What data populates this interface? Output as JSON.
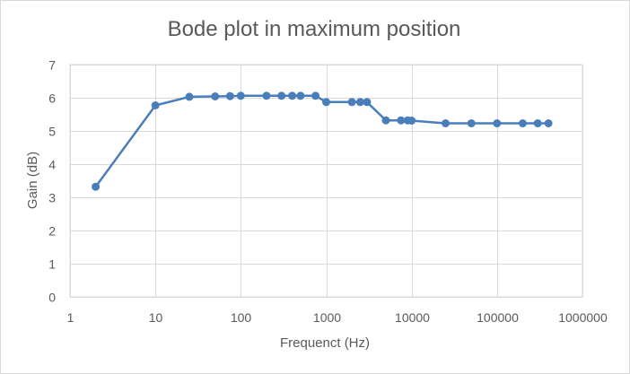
{
  "chart_data": {
    "type": "line",
    "title": "Bode plot in maximum position",
    "xlabel": "Frequenct (Hz)",
    "ylabel": "Gain (dB)",
    "x_scale": "log",
    "xlim": [
      1,
      1000000
    ],
    "ylim": [
      0,
      7
    ],
    "x_ticks": [
      1,
      10,
      100,
      1000,
      10000,
      100000,
      1000000
    ],
    "x_tick_labels": [
      "1",
      "10",
      "100",
      "1000",
      "10000",
      "100000",
      "1000000"
    ],
    "y_ticks": [
      0,
      1,
      2,
      3,
      4,
      5,
      6,
      7
    ],
    "y_tick_labels": [
      "0",
      "1",
      "2",
      "3",
      "4",
      "5",
      "6",
      "7"
    ],
    "grid": true,
    "legend": "none",
    "color": "#4a7ebb",
    "series": [
      {
        "x": [
          2,
          10,
          25,
          50,
          75,
          100,
          200,
          300,
          400,
          500,
          750,
          1000,
          2000,
          2500,
          3000,
          5000,
          7500,
          9000,
          10000,
          25000,
          50000,
          100000,
          200000,
          300000,
          400000
        ],
        "y": [
          3.32,
          5.77,
          6.03,
          6.04,
          6.05,
          6.06,
          6.06,
          6.06,
          6.06,
          6.06,
          6.06,
          5.87,
          5.87,
          5.87,
          5.87,
          5.32,
          5.32,
          5.32,
          5.31,
          5.23,
          5.23,
          5.23,
          5.23,
          5.23,
          5.23
        ]
      }
    ]
  }
}
